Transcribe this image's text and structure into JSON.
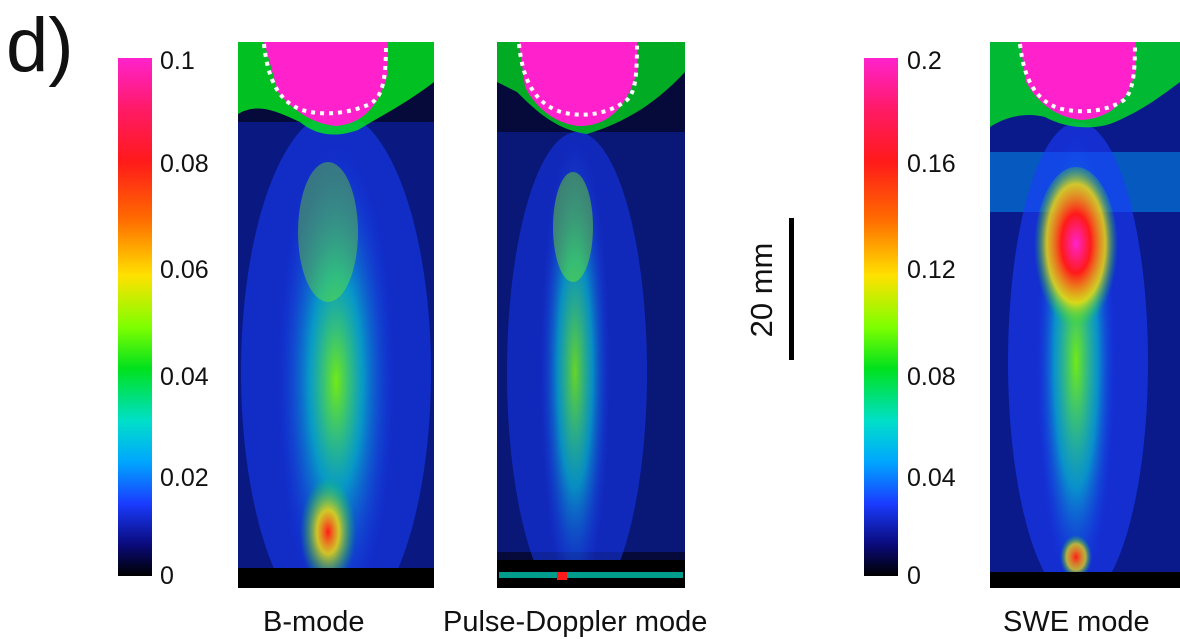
{
  "figure": {
    "panel_label": "d)"
  },
  "colorbars": [
    {
      "ticks": [
        "0.1",
        "0.08",
        "0.06",
        "0.04",
        "0.02",
        "0"
      ]
    },
    {
      "ticks": [
        "0.2",
        "0.16",
        "0.12",
        "0.08",
        "0.04",
        "0"
      ]
    }
  ],
  "images": [
    {
      "caption": "B-mode"
    },
    {
      "caption": "Pulse-Doppler mode"
    },
    {
      "caption": "SWE mode"
    }
  ],
  "scale_bar": {
    "label": "20 mm"
  },
  "colors": {
    "max": "#ff22cc",
    "high": "#ff1a1a",
    "mid_high": "#ffe100",
    "mid": "#00e11e",
    "mid_low": "#00e0c8",
    "low": "#1a3cff",
    "min": "#000000",
    "outline": "#ffffff"
  }
}
